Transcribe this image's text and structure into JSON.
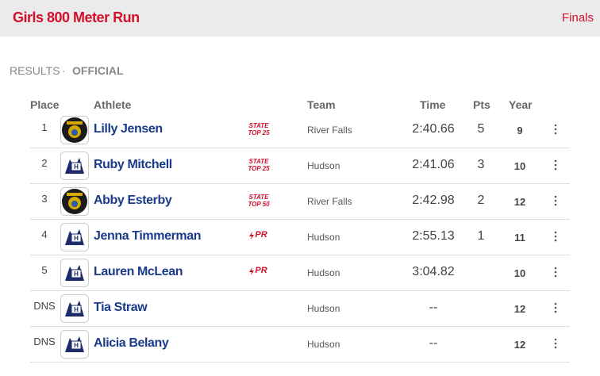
{
  "header": {
    "title": "Girls 800 Meter Run",
    "round": "Finals"
  },
  "status": {
    "label": "RESULTS",
    "separator": "·",
    "state": "OFFICIAL"
  },
  "table": {
    "columns": [
      "Place",
      "Athlete",
      "Team",
      "Time",
      "Pts",
      "Year"
    ],
    "rows": [
      {
        "place": 1,
        "athlete": "Lilly Jensen",
        "badge": {
          "line1": "STATE",
          "line2": "TOP 25"
        },
        "team": "River Falls",
        "time": "2:40.66",
        "pts": 5,
        "year": 9
      },
      {
        "place": 2,
        "athlete": "Ruby Mitchell",
        "badge": {
          "line1": "STATE",
          "line2": "TOP 25"
        },
        "team": "Hudson",
        "time": "2:41.06",
        "pts": 3,
        "year": 10
      },
      {
        "place": 3,
        "athlete": "Abby Esterby",
        "badge": {
          "line1": "STATE",
          "line2": "TOP 50"
        },
        "team": "River Falls",
        "time": "2:42.98",
        "pts": 2,
        "year": 12
      },
      {
        "place": 4,
        "athlete": "Jenna Timmerman",
        "badge": {
          "pr": "PR"
        },
        "team": "Hudson",
        "time": "2:55.13",
        "pts": 1,
        "year": 11
      },
      {
        "place": 5,
        "athlete": "Lauren McLean",
        "badge": {
          "pr": "PR"
        },
        "team": "Hudson",
        "time": "3:04.82",
        "pts": null,
        "year": 10
      },
      {
        "place": "DNS",
        "athlete": "Tia Straw",
        "badge": null,
        "team": "Hudson",
        "time": "--",
        "pts": null,
        "year": 12
      },
      {
        "place": "DNS",
        "athlete": "Alicia Belany",
        "badge": null,
        "team": "Hudson",
        "time": "--",
        "pts": null,
        "year": 12
      }
    ]
  }
}
